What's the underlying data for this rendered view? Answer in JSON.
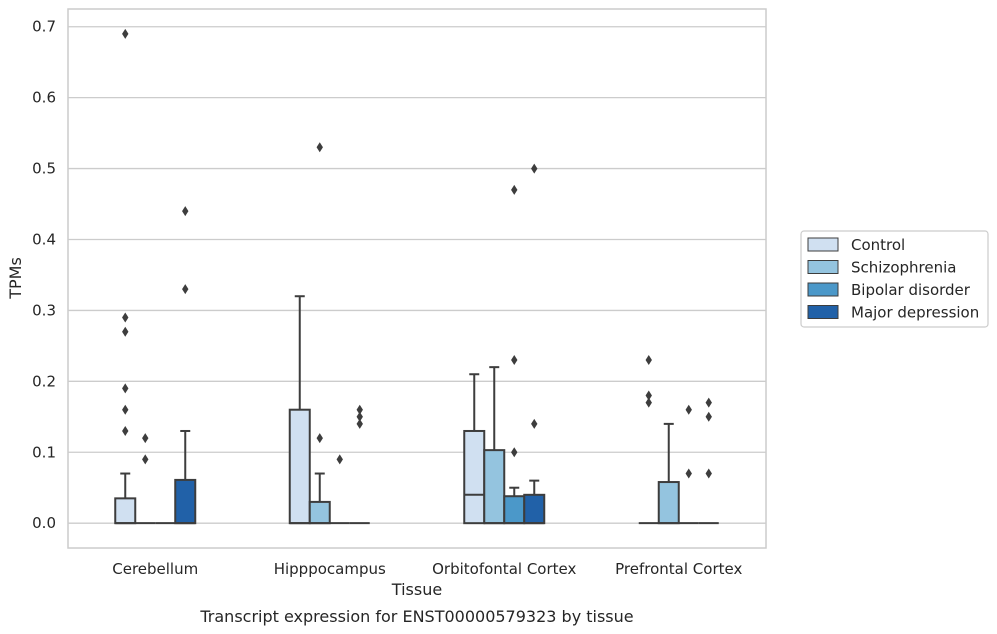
{
  "chart_data": {
    "type": "box",
    "xlabel": "Tissue",
    "ylabel": "TPMs",
    "ylim": [
      -0.035,
      0.725
    ],
    "yticks": [
      "0.0",
      "0.1",
      "0.2",
      "0.3",
      "0.4",
      "0.5",
      "0.6",
      "0.7"
    ],
    "grid": "horizontal",
    "legend_position": "right",
    "categories": [
      "Cerebellum",
      "Hipppocampus",
      "Orbitofontal Cortex",
      "Prefrontal Cortex"
    ],
    "series": [
      {
        "name": "Control",
        "color": "#d0e0f1",
        "boxes": [
          {
            "q1": 0.0,
            "median": 0.0,
            "q3": 0.035,
            "whisker_low": 0.0,
            "whisker_high": 0.07,
            "outliers": [
              0.13,
              0.16,
              0.19,
              0.27,
              0.29,
              0.69
            ]
          },
          {
            "q1": 0.0,
            "median": 0.0,
            "q3": 0.16,
            "whisker_low": 0.0,
            "whisker_high": 0.32,
            "outliers": []
          },
          {
            "q1": 0.0,
            "median": 0.04,
            "q3": 0.13,
            "whisker_low": 0.0,
            "whisker_high": 0.21,
            "outliers": []
          },
          {
            "q1": 0.0,
            "median": 0.0,
            "q3": 0.0,
            "whisker_low": 0.0,
            "whisker_high": 0.0,
            "outliers": [
              0.17,
              0.18,
              0.23
            ]
          }
        ]
      },
      {
        "name": "Schizophrenia",
        "color": "#94c4df",
        "boxes": [
          {
            "q1": 0.0,
            "median": 0.0,
            "q3": 0.0,
            "whisker_low": 0.0,
            "whisker_high": 0.0,
            "outliers": [
              0.09,
              0.12
            ]
          },
          {
            "q1": 0.0,
            "median": 0.0,
            "q3": 0.03,
            "whisker_low": 0.0,
            "whisker_high": 0.07,
            "outliers": [
              0.12,
              0.53
            ]
          },
          {
            "q1": 0.0,
            "median": 0.0,
            "q3": 0.103,
            "whisker_low": 0.0,
            "whisker_high": 0.22,
            "outliers": []
          },
          {
            "q1": 0.0,
            "median": 0.0,
            "q3": 0.058,
            "whisker_low": 0.0,
            "whisker_high": 0.14,
            "outliers": []
          }
        ]
      },
      {
        "name": "Bipolar disorder",
        "color": "#4b98c9",
        "boxes": [
          {
            "q1": 0.0,
            "median": 0.0,
            "q3": 0.0,
            "whisker_low": 0.0,
            "whisker_high": 0.0,
            "outliers": []
          },
          {
            "q1": 0.0,
            "median": 0.0,
            "q3": 0.0,
            "whisker_low": 0.0,
            "whisker_high": 0.0,
            "outliers": [
              0.09
            ]
          },
          {
            "q1": 0.0,
            "median": 0.0,
            "q3": 0.038,
            "whisker_low": 0.0,
            "whisker_high": 0.05,
            "outliers": [
              0.1,
              0.23,
              0.47
            ]
          },
          {
            "q1": 0.0,
            "median": 0.0,
            "q3": 0.0,
            "whisker_low": 0.0,
            "whisker_high": 0.0,
            "outliers": [
              0.07,
              0.16
            ]
          }
        ]
      },
      {
        "name": "Major depression",
        "color": "#2161a8",
        "boxes": [
          {
            "q1": 0.0,
            "median": 0.0,
            "q3": 0.061,
            "whisker_low": 0.0,
            "whisker_high": 0.13,
            "outliers": [
              0.33,
              0.44
            ]
          },
          {
            "q1": 0.0,
            "median": 0.0,
            "q3": 0.0,
            "whisker_low": 0.0,
            "whisker_high": 0.0,
            "outliers": [
              0.14,
              0.15,
              0.16
            ]
          },
          {
            "q1": 0.0,
            "median": 0.0,
            "q3": 0.04,
            "whisker_low": 0.0,
            "whisker_high": 0.06,
            "outliers": [
              0.14,
              0.5
            ]
          },
          {
            "q1": 0.0,
            "median": 0.0,
            "q3": 0.0,
            "whisker_low": 0.0,
            "whisker_high": 0.0,
            "outliers": [
              0.07,
              0.15,
              0.17
            ]
          }
        ]
      }
    ]
  },
  "caption": "Transcript expression for ENST00000579323 by tissue",
  "colors": {
    "grid": "#cccccc",
    "frame": "#cccccc",
    "edge": "#3d3d3d"
  }
}
